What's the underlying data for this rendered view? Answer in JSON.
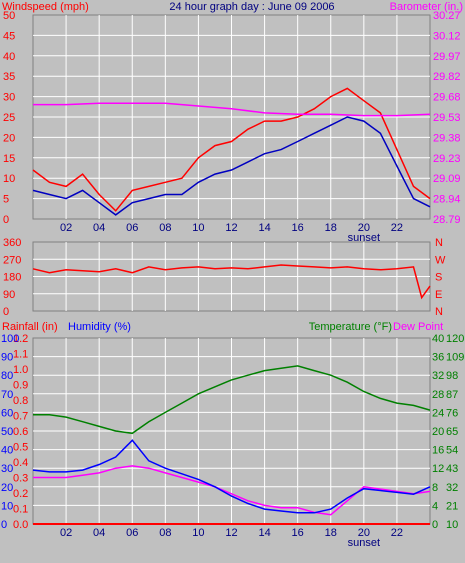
{
  "colors": {
    "frame_bg": "#c0c0c0",
    "plot_bg": "#c0c0c0",
    "grid": "#ffffff",
    "wind": "#ff0000",
    "wind_avg": "#0000c0",
    "barometer": "#ff00ff",
    "direction": "#ff0000",
    "temperature": "#008000",
    "dewpoint": "#ff00ff",
    "humidity": "#0000ff",
    "rainfall": "#ff0000",
    "title": "#000080"
  },
  "header": {
    "wind_label": "Windspeed (mph)",
    "title": "24 hour graph day : June 09 2006",
    "baro_label": "Barometer (in.)"
  },
  "lower_header": {
    "rain_label": "Rainfall (in)",
    "humidity_label": "Humidity (%)",
    "temp_label": "Temperature (°F)",
    "dew_label": "Dew Point"
  },
  "x_ticks": [
    "02",
    "04",
    "06",
    "08",
    "10",
    "12",
    "14",
    "16",
    "18",
    "20",
    "22"
  ],
  "sunset_label": "sunset",
  "chart_data": [
    {
      "type": "line",
      "x": "hour of day (0-24)",
      "y_left": {
        "name": "Windspeed (mph)",
        "ticks": [
          "50",
          "45",
          "40",
          "35",
          "30",
          "25",
          "20",
          "15",
          "10",
          "5",
          "0"
        ],
        "ylim": [
          0,
          50
        ]
      },
      "y_right": {
        "name": "Barometer (in.)",
        "ticks": [
          "30.27",
          "30.12",
          "29.97",
          "29.82",
          "29.68",
          "29.53",
          "29.38",
          "29.23",
          "29.09",
          "28.94",
          "28.79"
        ],
        "ylim": [
          28.79,
          30.27
        ]
      },
      "series": [
        {
          "name": "Windspeed (mph)",
          "axis": "left",
          "x": [
            0,
            1,
            2,
            3,
            4,
            5,
            6,
            7,
            8,
            9,
            10,
            11,
            12,
            13,
            14,
            15,
            16,
            17,
            18,
            19,
            20,
            21,
            22,
            23,
            24
          ],
          "values": [
            12,
            9,
            8,
            11,
            6,
            2,
            7,
            8,
            9,
            10,
            15,
            18,
            19,
            22,
            24,
            24,
            25,
            27,
            30,
            32,
            29,
            26,
            17,
            8,
            5
          ]
        },
        {
          "name": "Windspeed average",
          "axis": "left",
          "x": [
            0,
            1,
            2,
            3,
            4,
            5,
            6,
            7,
            8,
            9,
            10,
            11,
            12,
            13,
            14,
            15,
            16,
            17,
            18,
            19,
            20,
            21,
            22,
            23,
            24
          ],
          "values": [
            7,
            6,
            5,
            7,
            4,
            1,
            4,
            5,
            6,
            6,
            9,
            11,
            12,
            14,
            16,
            17,
            19,
            21,
            23,
            25,
            24,
            21,
            13,
            5,
            3
          ]
        },
        {
          "name": "Barometer (in.)",
          "axis": "right",
          "x": [
            0,
            2,
            4,
            6,
            8,
            10,
            12,
            14,
            16,
            18,
            20,
            22,
            24
          ],
          "values": [
            29.62,
            29.62,
            29.63,
            29.63,
            29.63,
            29.61,
            29.59,
            29.56,
            29.55,
            29.55,
            29.54,
            29.54,
            29.55
          ]
        }
      ]
    },
    {
      "type": "line",
      "x": "hour of day (0-24)",
      "y_left": {
        "ticks": [
          "360",
          "270",
          "180",
          "90",
          "0"
        ],
        "ylim": [
          0,
          360
        ]
      },
      "y_right": {
        "ticks": [
          "N",
          "W",
          "S",
          "E",
          "N"
        ]
      },
      "series": [
        {
          "name": "Wind direction",
          "x": [
            0,
            1,
            2,
            3,
            4,
            5,
            6,
            7,
            8,
            9,
            10,
            11,
            12,
            13,
            14,
            15,
            16,
            17,
            18,
            19,
            20,
            21,
            22,
            23,
            23.5,
            24
          ],
          "values": [
            220,
            200,
            215,
            210,
            205,
            220,
            200,
            230,
            215,
            225,
            230,
            220,
            225,
            220,
            230,
            240,
            235,
            230,
            225,
            230,
            220,
            215,
            220,
            230,
            70,
            130
          ]
        }
      ]
    },
    {
      "type": "line",
      "x": "hour of day (0-24)",
      "y_rain": {
        "name": "Rainfall (in)",
        "ticks": [
          "1.2",
          "1.1",
          "1.0",
          "0.9",
          "0.8",
          "0.7",
          "0.6",
          "0.5",
          "0.4",
          "0.3",
          "0.2",
          "0.1",
          "0.0"
        ],
        "ylim": [
          0,
          1.2
        ]
      },
      "y_humidity": {
        "name": "Humidity (%)",
        "ticks": [
          "100",
          "90",
          "80",
          "70",
          "60",
          "50",
          "40",
          "30",
          "20",
          "10",
          "0"
        ],
        "ylim": [
          0,
          100
        ]
      },
      "y_temp_c": {
        "ticks": [
          "40",
          "36",
          "32",
          "28",
          "24",
          "20",
          "16",
          "12",
          "8",
          "4",
          "0"
        ],
        "ylim": [
          0,
          40
        ]
      },
      "y_temp_f": {
        "name": "Temperature (°F)",
        "ticks": [
          "120",
          "109",
          "98",
          "87",
          "76",
          "65",
          "54",
          "43",
          "32",
          "21",
          "10"
        ]
      },
      "series": [
        {
          "name": "Temperature (°F)",
          "axis": "temp_c",
          "x": [
            0,
            1,
            2,
            3,
            4,
            5,
            6,
            7,
            8,
            9,
            10,
            11,
            12,
            13,
            14,
            15,
            16,
            17,
            18,
            19,
            20,
            21,
            22,
            23,
            24
          ],
          "values": [
            23.5,
            23.5,
            23,
            22,
            21,
            20,
            19.5,
            22,
            24,
            26,
            28,
            29.5,
            31,
            32,
            33,
            33.5,
            34,
            33,
            32,
            30.5,
            28.5,
            27,
            26,
            25.5,
            24.5
          ]
        },
        {
          "name": "Dew Point",
          "axis": "temp_c",
          "x": [
            0,
            1,
            2,
            3,
            4,
            5,
            6,
            7,
            8,
            9,
            10,
            11,
            12,
            13,
            14,
            15,
            16,
            17,
            18,
            19,
            20,
            21,
            22,
            23,
            24
          ],
          "values": [
            10,
            10,
            10,
            10.5,
            11,
            12,
            12.5,
            12,
            11,
            10,
            9,
            8,
            6.5,
            5,
            4,
            3.5,
            3.5,
            2.5,
            2,
            5,
            8,
            7.5,
            7,
            6.5,
            7
          ]
        },
        {
          "name": "Humidity (%)",
          "axis": "humidity",
          "x": [
            0,
            1,
            2,
            3,
            4,
            5,
            6,
            7,
            8,
            9,
            10,
            11,
            12,
            13,
            14,
            15,
            16,
            17,
            18,
            19,
            20,
            21,
            22,
            23,
            24
          ],
          "values": [
            29,
            28,
            28,
            29,
            32,
            36,
            45,
            34,
            30,
            27,
            24,
            20,
            15,
            11,
            8,
            7,
            6,
            6,
            8,
            14,
            19,
            18,
            17,
            16,
            20
          ]
        },
        {
          "name": "Rainfall (in)",
          "axis": "rain",
          "x": [
            0,
            24
          ],
          "values": [
            0,
            0
          ]
        }
      ]
    }
  ]
}
